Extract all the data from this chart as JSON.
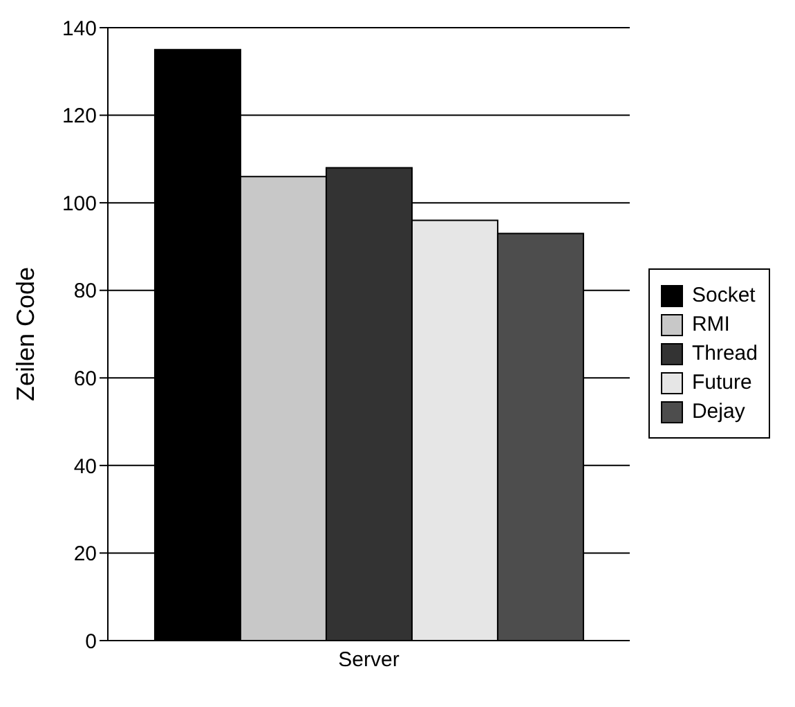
{
  "chart_data": {
    "type": "bar",
    "categories": [
      "Server"
    ],
    "ylabel": "Zeilen Code",
    "ylim": [
      0,
      140
    ],
    "yticks": [
      0,
      20,
      40,
      60,
      80,
      100,
      120,
      140
    ],
    "grid": "y",
    "legend": "right",
    "series": [
      {
        "name": "Socket",
        "color": "#000000",
        "values": [
          135
        ]
      },
      {
        "name": "RMI",
        "color": "#c8c8c8",
        "values": [
          106
        ]
      },
      {
        "name": "Thread",
        "color": "#333333",
        "values": [
          108
        ]
      },
      {
        "name": "Future",
        "color": "#e6e6e6",
        "values": [
          96
        ]
      },
      {
        "name": "Dejay",
        "color": "#4d4d4d",
        "values": [
          93
        ]
      }
    ]
  }
}
